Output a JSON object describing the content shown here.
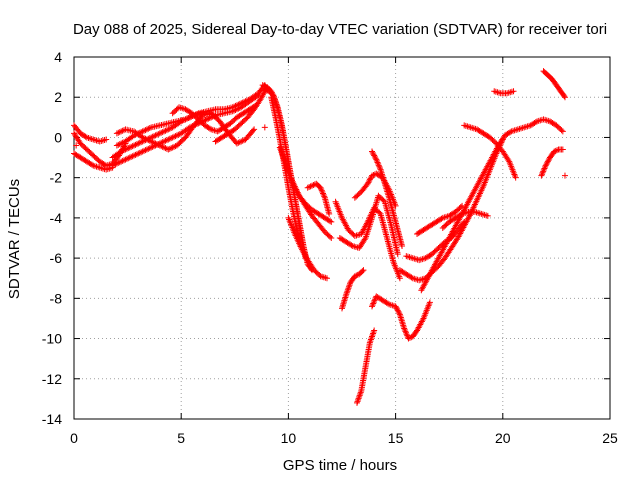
{
  "chart_data": {
    "type": "scatter",
    "title": "Day 088 of 2025, Sidereal Day-to-day VTEC variation (SDTVAR) for receiver tori",
    "xlabel": "GPS time / hours",
    "ylabel": "SDTVAR / TECUs",
    "xlim": [
      0,
      25
    ],
    "ylim": [
      -14,
      4
    ],
    "xticks": [
      "0",
      "5",
      "10",
      "15",
      "20",
      "25"
    ],
    "yticks": [
      "4",
      "2",
      "0",
      "-2",
      "-4",
      "-6",
      "-8",
      "-10",
      "-12",
      "-14"
    ],
    "grid": true,
    "legend": "none",
    "marker": "+",
    "color": "#ff0000",
    "series": [
      {
        "x": [
          0.0,
          0.3,
          0.6,
          0.9,
          1.2,
          1.5
        ],
        "y": [
          0.6,
          0.2,
          0.0,
          -0.1,
          -0.2,
          -0.1
        ]
      },
      {
        "x": [
          0.0,
          0.3,
          0.6,
          0.9,
          1.2,
          1.5,
          1.8,
          2.1,
          2.4
        ],
        "y": [
          0.2,
          -0.3,
          -0.6,
          -0.9,
          -1.2,
          -1.4,
          -1.3,
          -0.9,
          -0.3
        ]
      },
      {
        "x": [
          0.0,
          0.3,
          0.6,
          0.9,
          1.2,
          1.5,
          1.8
        ],
        "y": [
          -0.8,
          -1.0,
          -1.2,
          -1.4,
          -1.5,
          -1.6,
          -1.5
        ]
      },
      {
        "x": [
          1.8,
          2.2,
          2.6,
          3.0,
          3.4,
          3.8,
          4.2,
          4.6,
          5.0,
          5.4,
          5.8,
          6.2,
          6.6,
          7.0,
          7.4,
          7.8,
          8.2,
          8.6,
          8.9
        ],
        "y": [
          -1.0,
          -0.7,
          -0.5,
          -0.3,
          -0.1,
          0.1,
          0.3,
          0.5,
          0.8,
          1.0,
          1.2,
          1.3,
          1.4,
          1.4,
          1.5,
          1.7,
          1.9,
          2.2,
          2.6
        ]
      },
      {
        "x": [
          1.8,
          2.2,
          2.6,
          3.0,
          3.4,
          3.8,
          4.2,
          4.6,
          5.0,
          5.4,
          5.8,
          6.2,
          6.6,
          7.0,
          7.4,
          7.8,
          8.2,
          8.6
        ],
        "y": [
          -1.4,
          -1.2,
          -1.0,
          -0.8,
          -0.6,
          -0.4,
          -0.2,
          0.0,
          0.2,
          0.5,
          0.7,
          0.9,
          1.1,
          1.2,
          1.3,
          1.5,
          1.8,
          2.1
        ]
      },
      {
        "x": [
          2.0,
          2.4,
          2.8,
          3.2,
          3.6,
          4.0,
          4.4,
          4.8,
          5.2,
          5.6,
          6.0,
          6.4,
          6.8,
          7.2,
          7.6,
          8.0,
          8.4
        ],
        "y": [
          0.2,
          0.4,
          0.3,
          0.0,
          -0.2,
          -0.4,
          -0.6,
          -0.4,
          0.0,
          0.6,
          1.1,
          1.2,
          0.8,
          0.2,
          -0.3,
          -0.1,
          0.4
        ]
      },
      {
        "x": [
          2.0,
          2.4,
          2.8,
          3.2,
          3.6,
          4.0,
          4.4,
          4.8,
          5.2,
          5.6,
          6.0
        ],
        "y": [
          -0.4,
          -0.2,
          0.1,
          0.3,
          0.5,
          0.6,
          0.7,
          0.8,
          0.9,
          1.1,
          1.2
        ]
      },
      {
        "x": [
          4.6,
          4.9,
          5.2,
          5.5,
          5.8,
          6.1,
          6.4,
          6.7,
          7.0,
          7.3,
          7.6,
          7.9,
          8.2,
          8.5
        ],
        "y": [
          1.2,
          1.5,
          1.4,
          1.2,
          0.9,
          0.6,
          0.4,
          0.3,
          0.5,
          0.7,
          1.0,
          1.2,
          1.4,
          1.6
        ]
      },
      {
        "x": [
          6.6,
          6.9,
          7.2,
          7.5,
          7.8,
          8.1,
          8.4,
          8.7,
          9.0
        ],
        "y": [
          -0.2,
          0.0,
          0.2,
          0.4,
          0.7,
          1.0,
          1.4,
          1.9,
          2.5
        ]
      },
      {
        "x": [
          8.8,
          9.0,
          9.2,
          9.4,
          9.6,
          9.8,
          10.0,
          10.2,
          10.4,
          10.6,
          10.8
        ],
        "y": [
          2.6,
          2.5,
          2.3,
          1.8,
          1.0,
          0.0,
          -1.2,
          -2.4,
          -3.6,
          -4.8,
          -6.0
        ]
      },
      {
        "x": [
          8.9,
          9.1,
          9.3,
          9.5,
          9.7,
          9.9,
          10.1,
          10.3,
          10.5,
          10.7,
          10.9,
          11.1
        ],
        "y": [
          2.4,
          2.3,
          2.1,
          1.5,
          0.6,
          -0.6,
          -1.8,
          -3.0,
          -4.2,
          -5.4,
          -6.3,
          -6.6
        ]
      },
      {
        "x": [
          9.2,
          9.4,
          9.6,
          9.8,
          10.0,
          10.2,
          10.4,
          10.6
        ],
        "y": [
          2.0,
          1.0,
          -0.1,
          -1.3,
          -2.5,
          -3.6,
          -4.6,
          -5.5
        ]
      },
      {
        "x": [
          9.6,
          9.9,
          10.2,
          10.5,
          10.8,
          11.1,
          11.4,
          11.7,
          12.0
        ],
        "y": [
          -0.5,
          -1.4,
          -2.3,
          -2.9,
          -3.3,
          -3.6,
          -3.8,
          -4.0,
          -4.2
        ]
      },
      {
        "x": [
          9.9,
          10.2,
          10.5,
          10.8,
          11.1,
          11.4,
          11.7,
          12.0
        ],
        "y": [
          -1.5,
          -2.2,
          -2.9,
          -3.4,
          -3.9,
          -4.3,
          -4.7,
          -5.0
        ]
      },
      {
        "x": [
          10.0,
          10.3,
          10.6,
          10.9,
          11.2,
          11.5,
          11.8
        ],
        "y": [
          -4.0,
          -4.8,
          -5.5,
          -6.1,
          -6.6,
          -6.9,
          -7.0
        ]
      },
      {
        "x": [
          10.9,
          11.1,
          11.3,
          11.5,
          11.7,
          11.9
        ],
        "y": [
          -2.5,
          -2.4,
          -2.3,
          -2.5,
          -3.0,
          -3.8
        ]
      },
      {
        "x": [
          12.2,
          12.5,
          12.8,
          13.1,
          13.4,
          13.7,
          14.0,
          14.3,
          14.6,
          14.9,
          15.2
        ],
        "y": [
          -3.2,
          -4.0,
          -4.6,
          -4.9,
          -4.8,
          -4.2,
          -3.5,
          -3.8,
          -5.0,
          -6.2,
          -7.0
        ]
      },
      {
        "x": [
          12.4,
          12.7,
          13.0,
          13.3,
          13.6,
          13.9,
          14.2,
          14.5,
          14.8,
          15.1
        ],
        "y": [
          -5.0,
          -5.2,
          -5.4,
          -5.5,
          -5.0,
          -4.0,
          -2.9,
          -3.2,
          -4.4,
          -5.8
        ]
      },
      {
        "x": [
          13.1,
          13.4,
          13.7,
          13.9,
          14.1,
          14.4,
          14.7,
          15.0
        ],
        "y": [
          -3.0,
          -2.7,
          -2.3,
          -1.9,
          -1.8,
          -2.0,
          -2.6,
          -3.4
        ]
      },
      {
        "x": [
          13.9,
          14.1,
          14.3,
          14.5,
          14.7,
          14.9,
          15.1,
          15.3
        ],
        "y": [
          -0.7,
          -1.1,
          -1.6,
          -2.3,
          -3.0,
          -3.8,
          -4.6,
          -5.4
        ]
      },
      {
        "x": [
          12.5,
          12.7,
          12.9,
          13.1,
          13.3,
          13.5
        ],
        "y": [
          -8.5,
          -7.8,
          -7.2,
          -6.9,
          -6.8,
          -6.6
        ]
      },
      {
        "x": [
          13.2,
          13.4,
          13.6,
          13.8,
          14.0
        ],
        "y": [
          -13.2,
          -12.6,
          -11.4,
          -10.2,
          -9.6
        ]
      },
      {
        "x": [
          13.9,
          14.1,
          14.4,
          14.7,
          15.0,
          15.2,
          15.4,
          15.6,
          15.8,
          16.0,
          16.3,
          16.6
        ],
        "y": [
          -8.4,
          -7.9,
          -8.1,
          -8.3,
          -8.4,
          -8.8,
          -9.5,
          -10.0,
          -9.9,
          -9.6,
          -9.0,
          -8.2
        ]
      },
      {
        "x": [
          15.2,
          15.5,
          15.8,
          16.1,
          16.4,
          16.7,
          17.0,
          17.3,
          17.6,
          17.9,
          18.2,
          18.5,
          18.8,
          19.1,
          19.4,
          19.7,
          20.0
        ],
        "y": [
          -6.6,
          -6.8,
          -7.0,
          -7.1,
          -7.0,
          -6.7,
          -6.4,
          -6.0,
          -5.5,
          -5.0,
          -4.4,
          -3.8,
          -3.1,
          -2.4,
          -1.6,
          -0.8,
          -0.1
        ]
      },
      {
        "x": [
          15.5,
          15.8,
          16.1,
          16.4,
          16.7,
          17.0,
          17.3,
          17.6,
          17.9,
          18.2
        ],
        "y": [
          -5.9,
          -6.0,
          -6.1,
          -6.0,
          -5.8,
          -5.5,
          -5.2,
          -5.0,
          -4.6,
          -4.2
        ]
      },
      {
        "x": [
          16.0,
          16.3,
          16.6,
          16.9,
          17.2,
          17.5,
          17.8,
          18.1
        ],
        "y": [
          -4.8,
          -4.6,
          -4.4,
          -4.2,
          -4.0,
          -3.9,
          -3.7,
          -3.4
        ]
      },
      {
        "x": [
          16.2,
          16.5,
          16.8,
          17.1,
          17.4,
          17.7,
          18.0,
          18.3,
          18.6,
          18.9,
          19.2,
          19.5,
          19.8,
          20.1,
          20.4,
          20.7,
          21.0,
          21.3,
          21.6,
          21.9,
          22.2,
          22.5,
          22.8
        ],
        "y": [
          -7.6,
          -7.0,
          -6.4,
          -5.8,
          -5.2,
          -4.6,
          -4.0,
          -3.4,
          -2.8,
          -2.2,
          -1.6,
          -1.0,
          -0.4,
          0.1,
          0.3,
          0.4,
          0.5,
          0.6,
          0.8,
          0.9,
          0.8,
          0.6,
          0.3
        ]
      },
      {
        "x": [
          17.2,
          17.5,
          17.8,
          18.1,
          18.4,
          18.7,
          19.0,
          19.3
        ],
        "y": [
          -4.5,
          -4.2,
          -4.0,
          -3.8,
          -3.7,
          -3.7,
          -3.8,
          -3.9
        ]
      },
      {
        "x": [
          18.2,
          18.5,
          18.8,
          19.1,
          19.4,
          19.7,
          20.0,
          20.3,
          20.6
        ],
        "y": [
          0.6,
          0.5,
          0.4,
          0.2,
          0.0,
          -0.3,
          -0.7,
          -1.2,
          -2.0
        ]
      },
      {
        "x": [
          19.6,
          19.9,
          20.2,
          20.5
        ],
        "y": [
          2.3,
          2.2,
          2.2,
          2.3
        ]
      },
      {
        "x": [
          21.8,
          22.0,
          22.2,
          22.4,
          22.6,
          22.8
        ],
        "y": [
          -1.9,
          -1.4,
          -1.0,
          -0.7,
          -0.6,
          -0.6
        ]
      },
      {
        "x": [
          21.9,
          22.1,
          22.3,
          22.5,
          22.7,
          22.9
        ],
        "y": [
          3.3,
          3.1,
          2.9,
          2.6,
          2.3,
          2.0
        ]
      },
      {
        "x": [
          8.9
        ],
        "y": [
          0.5
        ]
      },
      {
        "x": [
          22.9
        ],
        "y": [
          -1.9
        ]
      },
      {
        "x": [
          0.1
        ],
        "y": [
          -0.4
        ]
      }
    ]
  }
}
